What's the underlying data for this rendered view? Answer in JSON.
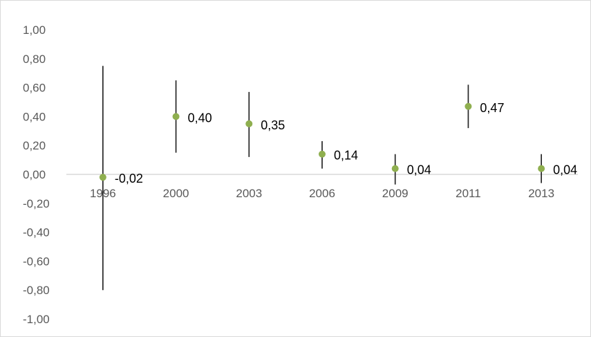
{
  "chart_data": {
    "type": "scatter",
    "categories": [
      "1996",
      "2000",
      "2003",
      "2006",
      "2009",
      "2011",
      "2013"
    ],
    "series": [
      {
        "values": [
          -0.02,
          0.4,
          0.35,
          0.14,
          0.04,
          0.47,
          0.04
        ],
        "lower": [
          -0.8,
          0.15,
          0.12,
          0.04,
          -0.07,
          0.32,
          -0.06
        ],
        "upper": [
          0.75,
          0.65,
          0.57,
          0.23,
          0.14,
          0.62,
          0.14
        ],
        "labels": [
          "-0,02",
          "0,40",
          "0,35",
          "0,14",
          "0,04",
          "0,47",
          "0,04"
        ]
      }
    ],
    "y_ticks": [
      "1,00",
      "0,80",
      "0,60",
      "0,40",
      "0,20",
      "0,00",
      "-0,20",
      "-0,40",
      "-0,60",
      "-0,80",
      "-1,00"
    ],
    "ylim": [
      -1.0,
      1.0
    ],
    "grid": false,
    "legend": "none",
    "colors": {
      "marker": "#8faf4f",
      "error_bar": "#262626",
      "axis": "#d9d9d9"
    }
  }
}
